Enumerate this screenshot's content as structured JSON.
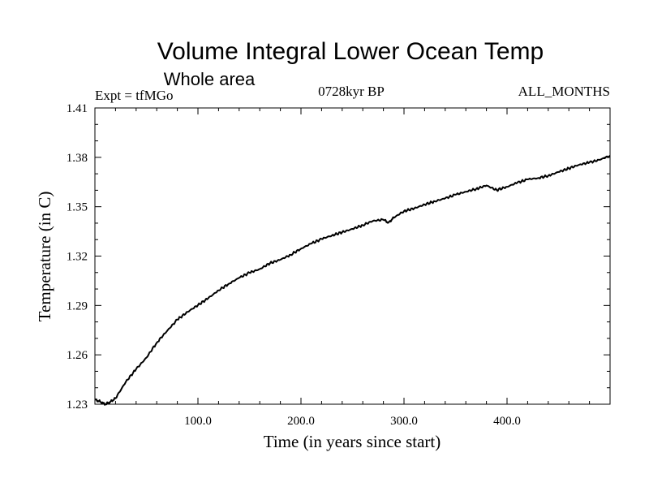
{
  "chart_data": {
    "type": "line",
    "title": "Volume Integral Lower Ocean Temp",
    "subtitle": "Whole area",
    "annotations": {
      "left": "Expt = tfMGo",
      "center": "0728kyr BP",
      "right": "ALL_MONTHS"
    },
    "xlabel": "Time (in years since start)",
    "ylabel": "Temperature (in C)",
    "xlim": [
      0,
      500
    ],
    "ylim": [
      1.23,
      1.41
    ],
    "xticks": [
      100,
      200,
      300,
      400
    ],
    "xtick_labels": [
      "100.0",
      "200.0",
      "300.0",
      "400.0"
    ],
    "yticks": [
      1.23,
      1.26,
      1.29,
      1.32,
      1.35,
      1.38,
      1.41
    ],
    "ytick_labels": [
      "1.23",
      "1.26",
      "1.29",
      "1.32",
      "1.35",
      "1.38",
      "1.41"
    ],
    "grid": false,
    "legend": "none",
    "line_color": "#000000",
    "series": [
      {
        "x": [
          0,
          5,
          10,
          15,
          20,
          30,
          40,
          50,
          60,
          70,
          80,
          90,
          100,
          110,
          120,
          130,
          140,
          150,
          160,
          170,
          180,
          190,
          200,
          210,
          220,
          230,
          240,
          250,
          260,
          270,
          280,
          285,
          290,
          300,
          310,
          320,
          330,
          340,
          350,
          360,
          370,
          380,
          390,
          400,
          410,
          420,
          430,
          440,
          450,
          460,
          470,
          480,
          490,
          500
        ],
        "values": [
          1.2328,
          1.2316,
          1.2299,
          1.2315,
          1.2336,
          1.2436,
          1.2513,
          1.2583,
          1.2674,
          1.2745,
          1.2814,
          1.2861,
          1.2902,
          1.2944,
          1.2992,
          1.3032,
          1.3068,
          1.3099,
          1.3121,
          1.3157,
          1.3178,
          1.3208,
          1.3245,
          1.3276,
          1.3304,
          1.3325,
          1.3345,
          1.3365,
          1.3388,
          1.3414,
          1.3421,
          1.3403,
          1.3433,
          1.3473,
          1.349,
          1.3513,
          1.3533,
          1.3551,
          1.3573,
          1.3591,
          1.3608,
          1.3629,
          1.3601,
          1.3621,
          1.3646,
          1.3666,
          1.3674,
          1.3688,
          1.3711,
          1.3733,
          1.3755,
          1.3769,
          1.3785,
          1.381
        ]
      }
    ]
  }
}
